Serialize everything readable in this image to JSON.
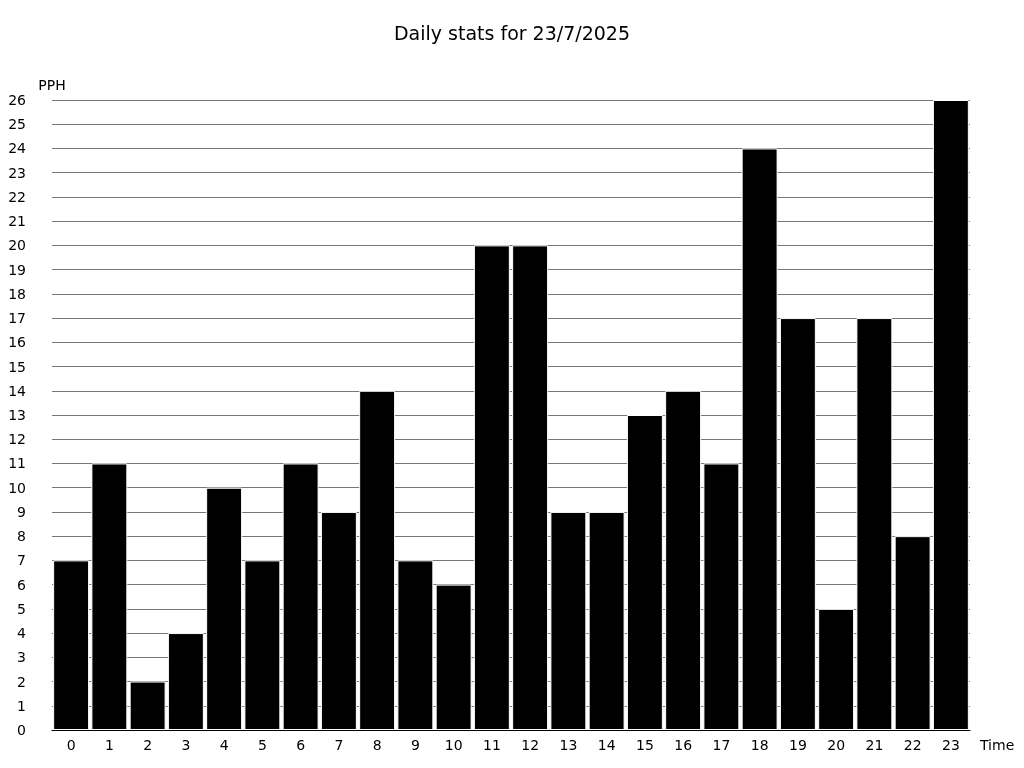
{
  "chart_data": {
    "type": "bar",
    "title": "Daily stats for 23/7/2025",
    "xlabel": "Time",
    "ylabel": "PPH",
    "categories": [
      "0",
      "1",
      "2",
      "3",
      "4",
      "5",
      "6",
      "7",
      "8",
      "9",
      "10",
      "11",
      "12",
      "13",
      "14",
      "15",
      "16",
      "17",
      "18",
      "19",
      "20",
      "21",
      "22",
      "23"
    ],
    "values": [
      7,
      11,
      2,
      4,
      10,
      7,
      11,
      9,
      14,
      7,
      6,
      20,
      20,
      9,
      9,
      13,
      14,
      11,
      24,
      17,
      5,
      17,
      8,
      26
    ],
    "color": "#000000",
    "ylim": [
      0,
      26
    ],
    "yticks": [
      0,
      1,
      2,
      3,
      4,
      5,
      6,
      7,
      8,
      9,
      10,
      11,
      12,
      13,
      14,
      15,
      16,
      17,
      18,
      19,
      20,
      21,
      22,
      23,
      24,
      25,
      26
    ],
    "grid": "y"
  }
}
